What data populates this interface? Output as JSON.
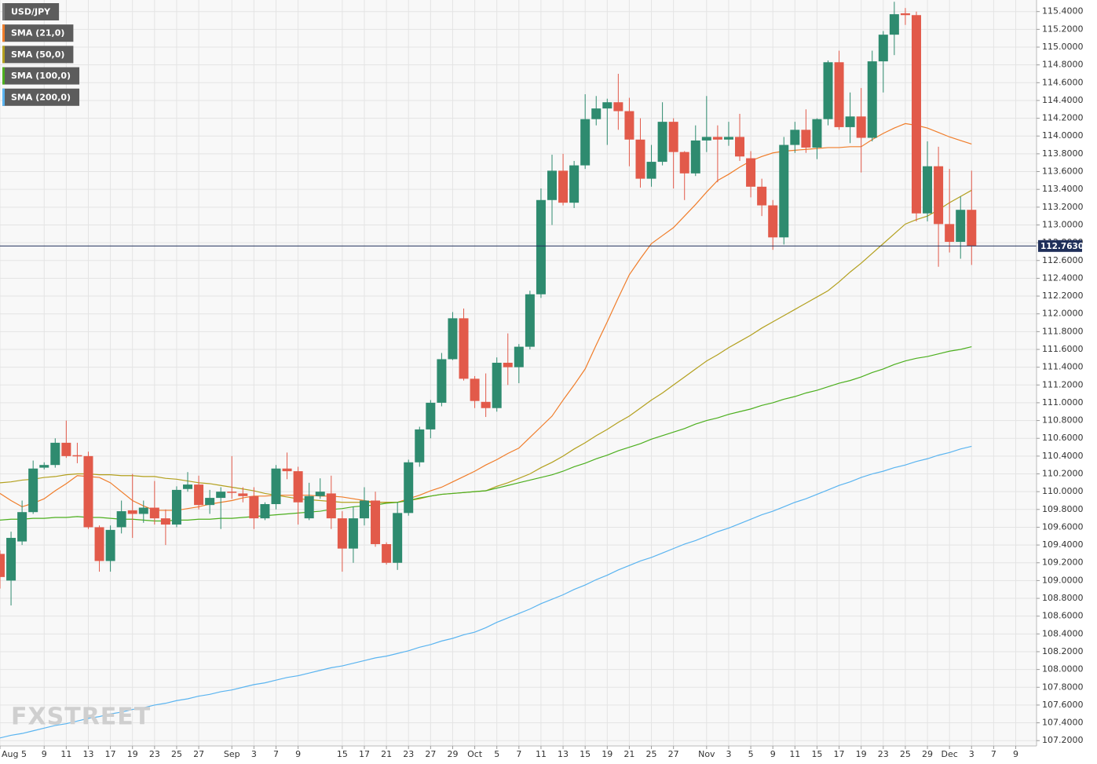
{
  "chart_data": {
    "type": "candlestick",
    "watermark": "FXSTREET",
    "grid": true,
    "ylim": [
      107.14,
      115.53
    ],
    "yticks": [
      {
        "value": 107.2,
        "label": "107.2000"
      },
      {
        "value": 107.4,
        "label": "107.4000"
      },
      {
        "value": 107.6,
        "label": "107.6000"
      },
      {
        "value": 107.8,
        "label": "107.8000"
      },
      {
        "value": 108.0,
        "label": "108.0000"
      },
      {
        "value": 108.2,
        "label": "108.2000"
      },
      {
        "value": 108.4,
        "label": "108.4000"
      },
      {
        "value": 108.6,
        "label": "108.6000"
      },
      {
        "value": 108.8,
        "label": "108.8000"
      },
      {
        "value": 109.0,
        "label": "109.0000"
      },
      {
        "value": 109.2,
        "label": "109.2000"
      },
      {
        "value": 109.4,
        "label": "109.4000"
      },
      {
        "value": 109.6,
        "label": "109.6000"
      },
      {
        "value": 109.8,
        "label": "109.8000"
      },
      {
        "value": 110.0,
        "label": "110.0000"
      },
      {
        "value": 110.2,
        "label": "110.2000"
      },
      {
        "value": 110.4,
        "label": "110.4000"
      },
      {
        "value": 110.6,
        "label": "110.6000"
      },
      {
        "value": 110.8,
        "label": "110.8000"
      },
      {
        "value": 111.0,
        "label": "111.0000"
      },
      {
        "value": 111.2,
        "label": "111.2000"
      },
      {
        "value": 111.4,
        "label": "111.4000"
      },
      {
        "value": 111.6,
        "label": "111.6000"
      },
      {
        "value": 111.8,
        "label": "111.8000"
      },
      {
        "value": 112.0,
        "label": "112.0000"
      },
      {
        "value": 112.2,
        "label": "112.2000"
      },
      {
        "value": 112.4,
        "label": "112.4000"
      },
      {
        "value": 112.6,
        "label": "112.6000"
      },
      {
        "value": 112.8,
        "label": "112.8000"
      },
      {
        "value": 113.0,
        "label": "113.0000"
      },
      {
        "value": 113.2,
        "label": "113.2000"
      },
      {
        "value": 113.4,
        "label": "113.4000"
      },
      {
        "value": 113.6,
        "label": "113.6000"
      },
      {
        "value": 113.8,
        "label": "113.8000"
      },
      {
        "value": 114.0,
        "label": "114.0000"
      },
      {
        "value": 114.2,
        "label": "114.2000"
      },
      {
        "value": 114.4,
        "label": "114.4000"
      },
      {
        "value": 114.6,
        "label": "114.6000"
      },
      {
        "value": 114.8,
        "label": "114.8000"
      },
      {
        "value": 115.0,
        "label": "115.0000"
      },
      {
        "value": 115.2,
        "label": "115.2000"
      },
      {
        "value": 115.4,
        "label": "115.4000"
      }
    ],
    "current_price": {
      "value": 112.763,
      "label": "112.7630",
      "color": "#1f2f5a"
    },
    "categories": [
      "Aug 5",
      null,
      null,
      null,
      "9",
      null,
      "11",
      null,
      "13",
      null,
      "17",
      null,
      "19",
      null,
      "23",
      null,
      "25",
      null,
      "27",
      null,
      null,
      "Sep",
      null,
      "3",
      null,
      "7",
      null,
      "9",
      null,
      null,
      null,
      "15",
      null,
      "17",
      null,
      "21",
      null,
      "23",
      null,
      "27",
      null,
      "29",
      null,
      "Oct",
      null,
      "5",
      null,
      "7",
      null,
      "11",
      null,
      "13",
      null,
      "15",
      null,
      "19",
      null,
      "21",
      null,
      "25",
      null,
      "27",
      null,
      null,
      "Nov",
      null,
      "3",
      null,
      "5",
      null,
      "9",
      null,
      "11",
      null,
      "15",
      null,
      "17",
      null,
      "19",
      null,
      "23",
      null,
      "25",
      null,
      "29",
      null,
      "Dec",
      null,
      "3",
      null,
      "7",
      null,
      "9"
    ],
    "series": [
      {
        "name": "USD/JPY",
        "type": "candlestick",
        "color": "#7a7a7a",
        "up_color": "#2e8b6f",
        "down_color": "#e25a4a",
        "open": [
          109.3,
          109.0,
          109.44,
          109.77,
          110.27,
          110.3,
          110.55,
          110.41,
          110.4,
          109.6,
          109.22,
          109.6,
          109.79,
          109.75,
          109.82,
          109.7,
          109.63,
          110.03,
          110.08,
          109.85,
          109.93,
          110.0,
          109.98,
          109.95,
          109.7,
          109.86,
          110.26,
          110.23,
          109.7,
          109.95,
          109.98,
          109.7,
          109.36,
          109.7,
          109.9,
          109.41,
          109.2,
          109.76,
          110.33,
          110.7,
          111.0,
          111.49,
          111.95,
          111.27,
          111.01,
          110.94,
          111.45,
          111.4,
          111.63,
          112.22,
          113.28,
          113.61,
          113.25,
          113.67,
          114.19,
          114.31,
          114.38,
          114.28,
          113.96,
          113.52,
          113.71,
          114.16,
          113.82,
          113.58,
          113.95,
          113.99,
          113.96,
          113.99,
          113.75,
          113.43,
          113.22,
          112.86,
          113.9,
          114.07,
          113.87,
          114.19,
          114.83,
          114.1,
          114.22,
          113.98,
          114.84,
          115.14,
          115.38,
          115.36,
          113.13,
          113.66,
          113.01,
          112.81,
          113.17,
          null,
          null,
          null,
          null
        ],
        "high": [
          109.34,
          109.55,
          109.9,
          110.35,
          110.33,
          110.6,
          110.8,
          110.55,
          110.45,
          109.62,
          109.62,
          109.9,
          110.2,
          109.9,
          110.12,
          109.8,
          110.06,
          110.22,
          110.18,
          110.02,
          110.05,
          110.4,
          110.05,
          110.05,
          109.88,
          110.3,
          110.44,
          110.28,
          110.1,
          110.15,
          110.18,
          109.78,
          109.83,
          110.05,
          110.0,
          109.43,
          109.88,
          110.36,
          110.73,
          111.03,
          111.56,
          112.02,
          112.06,
          111.3,
          111.33,
          111.51,
          111.78,
          111.66,
          112.26,
          113.41,
          113.79,
          113.8,
          113.72,
          114.47,
          114.45,
          114.42,
          114.7,
          114.43,
          114.2,
          113.9,
          114.38,
          114.2,
          113.83,
          114.12,
          114.45,
          114.12,
          114.16,
          114.25,
          113.83,
          113.52,
          113.28,
          113.99,
          114.16,
          114.3,
          114.2,
          114.85,
          114.96,
          114.49,
          114.54,
          114.96,
          115.18,
          115.51,
          115.44,
          115.4,
          113.94,
          113.88,
          113.63,
          113.32,
          113.61,
          null,
          null,
          null,
          null
        ],
        "low": [
          108.91,
          108.72,
          109.4,
          109.75,
          110.25,
          110.27,
          110.38,
          110.32,
          109.58,
          109.1,
          109.1,
          109.53,
          109.48,
          109.65,
          109.63,
          109.4,
          109.6,
          110.0,
          109.8,
          109.75,
          109.58,
          109.92,
          109.88,
          109.58,
          109.68,
          109.8,
          110.14,
          109.63,
          109.68,
          109.92,
          109.58,
          109.1,
          109.2,
          109.62,
          109.38,
          109.18,
          109.12,
          109.73,
          110.28,
          110.6,
          110.96,
          111.48,
          111.25,
          110.94,
          110.84,
          110.9,
          111.2,
          111.22,
          111.6,
          112.18,
          113.0,
          113.22,
          113.19,
          113.63,
          114.12,
          113.9,
          114.07,
          113.66,
          113.42,
          113.43,
          113.67,
          113.41,
          113.28,
          113.55,
          113.82,
          113.48,
          113.89,
          113.72,
          113.31,
          113.1,
          112.72,
          112.78,
          113.81,
          113.81,
          113.74,
          114.12,
          114.07,
          113.92,
          113.59,
          113.94,
          114.49,
          114.91,
          115.25,
          113.04,
          113.04,
          112.53,
          112.69,
          112.62,
          112.55,
          null,
          null,
          null,
          null
        ],
        "close": [
          109.04,
          109.48,
          109.77,
          110.26,
          110.3,
          110.55,
          110.4,
          110.4,
          109.6,
          109.22,
          109.57,
          109.78,
          109.75,
          109.82,
          109.7,
          109.63,
          110.02,
          110.08,
          109.85,
          109.93,
          110.0,
          109.99,
          109.95,
          109.7,
          109.86,
          110.26,
          110.23,
          109.88,
          109.95,
          110.0,
          109.7,
          109.36,
          109.7,
          109.9,
          109.41,
          109.2,
          109.76,
          110.33,
          110.7,
          111.0,
          111.49,
          111.95,
          111.27,
          111.02,
          110.94,
          111.45,
          111.4,
          111.63,
          112.22,
          113.28,
          113.61,
          113.25,
          113.67,
          114.19,
          114.31,
          114.38,
          114.28,
          113.96,
          113.52,
          113.71,
          114.16,
          113.82,
          113.58,
          113.95,
          113.99,
          113.96,
          113.99,
          113.77,
          113.43,
          113.22,
          112.86,
          113.9,
          114.07,
          113.87,
          114.19,
          114.83,
          114.1,
          114.22,
          113.98,
          114.84,
          115.14,
          115.37,
          115.36,
          113.13,
          113.66,
          113.01,
          112.81,
          113.17,
          112.763,
          null,
          null,
          null,
          null
        ]
      },
      {
        "name": "SMA (21,0)",
        "type": "line",
        "color": "#f07d2a",
        "values": [
          109.98,
          109.9,
          109.83,
          109.87,
          109.92,
          110.01,
          110.09,
          110.18,
          110.17,
          110.16,
          110.1,
          110.0,
          109.9,
          109.84,
          109.79,
          109.79,
          109.79,
          109.81,
          109.83,
          109.86,
          109.88,
          109.9,
          109.93,
          109.95,
          109.95,
          109.96,
          109.96,
          109.96,
          109.96,
          109.95,
          109.95,
          109.94,
          109.92,
          109.9,
          109.88,
          109.88,
          109.88,
          109.92,
          109.96,
          110.01,
          110.05,
          110.11,
          110.17,
          110.23,
          110.3,
          110.36,
          110.43,
          110.49,
          110.61,
          110.73,
          110.85,
          111.03,
          111.2,
          111.38,
          111.65,
          111.91,
          112.18,
          112.44,
          112.62,
          112.79,
          112.88,
          112.97,
          113.1,
          113.23,
          113.37,
          113.5,
          113.57,
          113.65,
          113.72,
          113.77,
          113.81,
          113.83,
          113.84,
          113.85,
          113.86,
          113.87,
          113.87,
          113.88,
          113.88,
          113.96,
          114.03,
          114.09,
          114.14,
          114.12,
          114.09,
          114.04,
          113.99,
          113.95,
          113.91,
          null,
          null,
          null,
          null
        ]
      },
      {
        "name": "SMA (50,0)",
        "type": "line",
        "color": "#b3a01e",
        "values": [
          110.1,
          110.11,
          110.13,
          110.14,
          110.16,
          110.17,
          110.19,
          110.2,
          110.2,
          110.19,
          110.19,
          110.18,
          110.18,
          110.17,
          110.17,
          110.15,
          110.14,
          110.12,
          110.1,
          110.09,
          110.07,
          110.05,
          110.03,
          110.01,
          109.98,
          109.96,
          109.94,
          109.92,
          109.91,
          109.9,
          109.89,
          109.88,
          109.88,
          109.88,
          109.88,
          109.88,
          109.88,
          109.9,
          109.92,
          109.95,
          109.97,
          109.98,
          109.99,
          110.0,
          110.01,
          110.06,
          110.1,
          110.15,
          110.2,
          110.27,
          110.33,
          110.4,
          110.48,
          110.55,
          110.63,
          110.7,
          110.78,
          110.85,
          110.94,
          111.03,
          111.11,
          111.2,
          111.29,
          111.38,
          111.47,
          111.54,
          111.62,
          111.69,
          111.76,
          111.84,
          111.91,
          111.98,
          112.05,
          112.12,
          112.19,
          112.26,
          112.36,
          112.47,
          112.57,
          112.68,
          112.79,
          112.9,
          113.01,
          113.06,
          113.1,
          113.17,
          113.25,
          113.32,
          113.39,
          null,
          null,
          null,
          null
        ]
      },
      {
        "name": "SMA (100,0)",
        "type": "line",
        "color": "#4caf1e",
        "values": [
          109.68,
          109.69,
          109.69,
          109.7,
          109.7,
          109.71,
          109.71,
          109.72,
          109.71,
          109.71,
          109.7,
          109.69,
          109.69,
          109.68,
          109.67,
          109.67,
          109.68,
          109.68,
          109.69,
          109.69,
          109.7,
          109.7,
          109.71,
          109.72,
          109.73,
          109.74,
          109.75,
          109.76,
          109.77,
          109.78,
          109.8,
          109.81,
          109.83,
          109.84,
          109.85,
          109.87,
          109.88,
          109.9,
          109.93,
          109.95,
          109.97,
          109.98,
          109.99,
          110.0,
          110.01,
          110.04,
          110.07,
          110.1,
          110.13,
          110.16,
          110.19,
          110.23,
          110.28,
          110.32,
          110.37,
          110.41,
          110.46,
          110.5,
          110.54,
          110.59,
          110.63,
          110.67,
          110.71,
          110.76,
          110.8,
          110.83,
          110.87,
          110.9,
          110.93,
          110.97,
          111.0,
          111.04,
          111.07,
          111.11,
          111.14,
          111.18,
          111.22,
          111.25,
          111.29,
          111.34,
          111.38,
          111.43,
          111.47,
          111.5,
          111.52,
          111.55,
          111.58,
          111.6,
          111.63,
          null,
          null,
          null,
          null
        ]
      },
      {
        "name": "SMA (200,0)",
        "type": "line",
        "color": "#5ab4f0",
        "values": [
          107.23,
          107.26,
          107.28,
          107.31,
          107.34,
          107.37,
          107.39,
          107.42,
          107.45,
          107.47,
          107.5,
          107.52,
          107.55,
          107.57,
          107.6,
          107.62,
          107.65,
          107.67,
          107.7,
          107.72,
          107.75,
          107.77,
          107.8,
          107.83,
          107.85,
          107.88,
          107.91,
          107.93,
          107.96,
          107.99,
          108.02,
          108.04,
          108.07,
          108.1,
          108.13,
          108.15,
          108.18,
          108.21,
          108.25,
          108.28,
          108.32,
          108.35,
          108.39,
          108.42,
          108.47,
          108.53,
          108.58,
          108.63,
          108.68,
          108.74,
          108.79,
          108.84,
          108.9,
          108.95,
          109.01,
          109.06,
          109.12,
          109.17,
          109.22,
          109.26,
          109.31,
          109.36,
          109.41,
          109.45,
          109.5,
          109.55,
          109.59,
          109.64,
          109.69,
          109.74,
          109.78,
          109.83,
          109.88,
          109.92,
          109.97,
          110.02,
          110.07,
          110.11,
          110.16,
          110.2,
          110.23,
          110.27,
          110.3,
          110.34,
          110.37,
          110.41,
          110.44,
          110.48,
          110.51,
          null,
          null,
          null,
          null
        ]
      }
    ]
  }
}
